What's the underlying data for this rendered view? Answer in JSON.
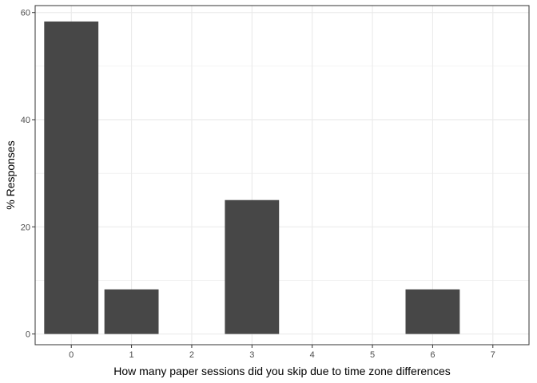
{
  "chart_data": {
    "type": "bar",
    "title": "",
    "xlabel": "How many paper sessions did you skip due to time zone differences",
    "ylabel": "% Responses",
    "categories": [
      0,
      1,
      3,
      6
    ],
    "values": [
      58.33,
      8.33,
      25.0,
      8.33
    ],
    "x_ticks": [
      0,
      1,
      2,
      3,
      4,
      5,
      6,
      7
    ],
    "y_ticks": [
      0,
      20,
      40,
      60
    ],
    "xlim": [
      -0.6,
      7.6
    ],
    "ylim": [
      -2.0,
      61.3
    ],
    "grid": true,
    "colors": {
      "bar": "#474747",
      "grid": "#ebebeb",
      "panel_border": "#333333"
    }
  }
}
